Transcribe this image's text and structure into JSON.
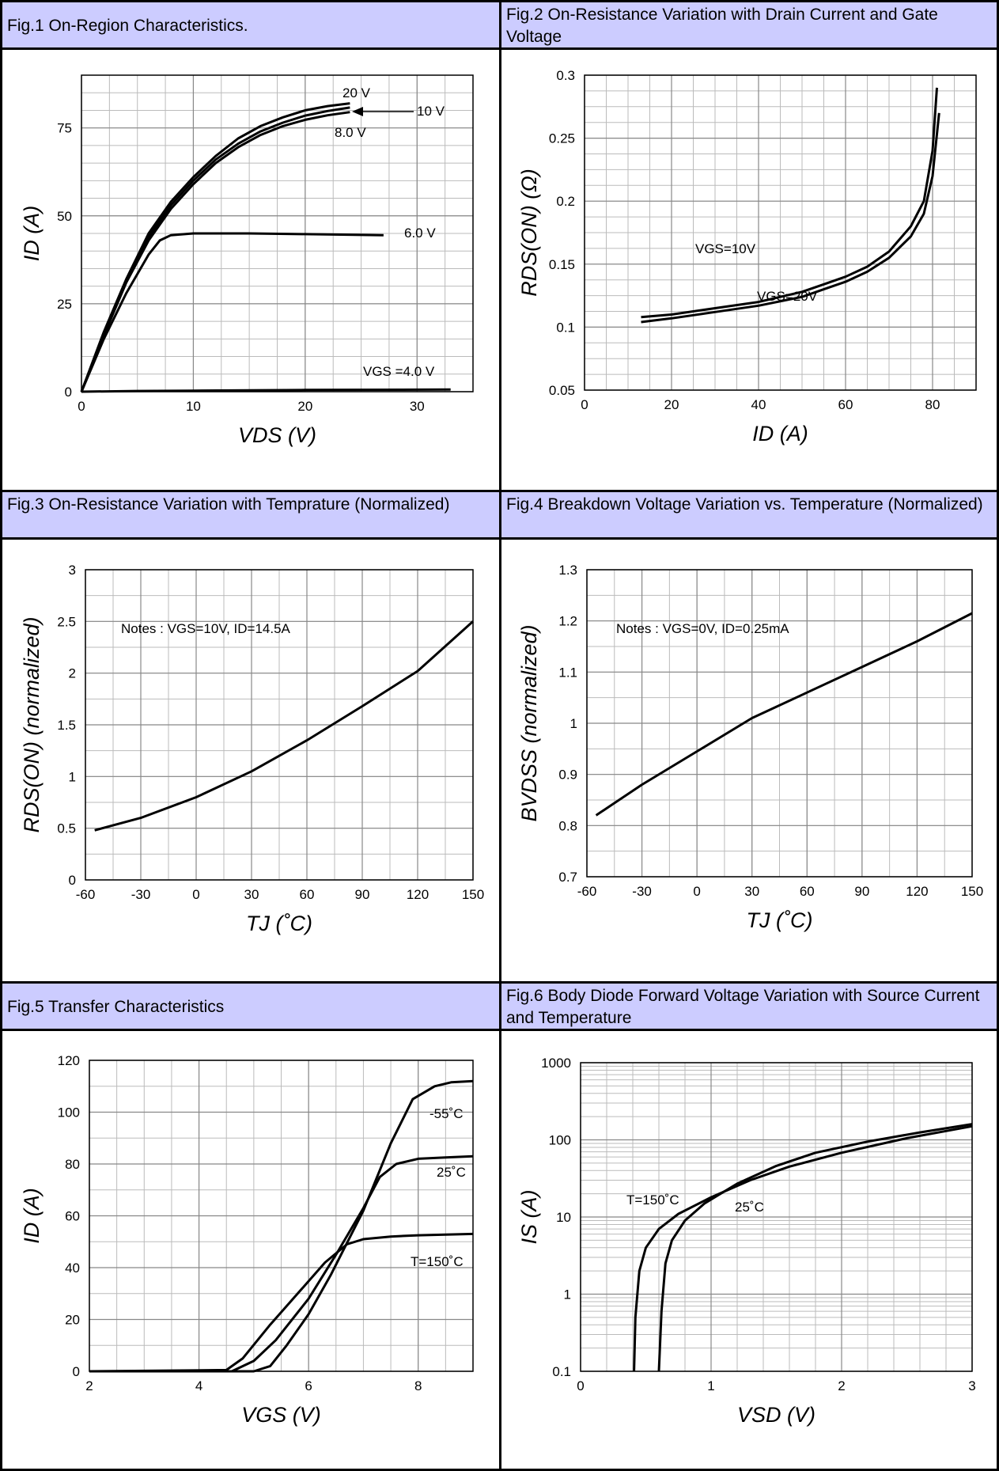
{
  "figures": [
    {
      "title": "Fig.1 On-Region Characteristics."
    },
    {
      "title": "Fig.2 On-Resistance Variation with Drain Current and Gate Voltage"
    },
    {
      "title": "Fig.3 On-Resistance Variation with Temprature (Normalized)"
    },
    {
      "title": "Fig.4 Breakdown Voltage Variation vs. Temperature (Normalized)"
    },
    {
      "title": "Fig.5 Transfer Characteristics"
    },
    {
      "title": "Fig.6 Body Diode Forward Voltage Variation with Source Current and Temperature"
    }
  ],
  "chart_data": [
    {
      "type": "line",
      "title": "Fig.1 On-Region Characteristics.",
      "xlabel": "VDS (V)",
      "ylabel": "ID (A)",
      "xlim": [
        0,
        35
      ],
      "ylim": [
        0,
        90
      ],
      "xticks": [
        0,
        10,
        20,
        30
      ],
      "yticks": [
        0,
        25,
        50,
        75
      ],
      "series": [
        {
          "name": "20 V",
          "x": [
            0,
            2,
            4,
            6,
            8,
            10,
            12,
            14,
            16,
            18,
            20,
            22,
            24
          ],
          "y": [
            0,
            17,
            32,
            45,
            54,
            61,
            67,
            72,
            75.5,
            78,
            80,
            81.2,
            82
          ]
        },
        {
          "name": "10 V",
          "x": [
            0,
            2,
            4,
            6,
            8,
            10,
            12,
            14,
            16,
            18,
            20,
            22,
            24
          ],
          "y": [
            0,
            16.5,
            31.5,
            44,
            53,
            60,
            66,
            70.5,
            74,
            76.5,
            78.5,
            79.8,
            80.8
          ]
        },
        {
          "name": "8.0 V",
          "x": [
            0,
            2,
            4,
            6,
            8,
            10,
            12,
            14,
            16,
            18,
            20,
            22,
            24
          ],
          "y": [
            0,
            16,
            31,
            43,
            52,
            59,
            65,
            69.5,
            73,
            75.5,
            77.3,
            78.6,
            79.5
          ]
        },
        {
          "name": "6.0 V",
          "x": [
            0,
            2,
            4,
            6,
            7,
            8,
            10,
            15,
            20,
            27
          ],
          "y": [
            0,
            15,
            28,
            39,
            43,
            44.5,
            45,
            45,
            44.8,
            44.5
          ]
        },
        {
          "name": "VGS =4.0 V",
          "x": [
            0,
            5,
            10,
            20,
            33
          ],
          "y": [
            0,
            0.2,
            0.3,
            0.5,
            0.6
          ]
        }
      ],
      "annotations": [
        "20 V",
        "10 V",
        "8.0 V",
        "6.0 V",
        "VGS =4.0 V"
      ]
    },
    {
      "type": "line",
      "title": "Fig.2 On-Resistance Variation with Drain Current and Gate Voltage",
      "xlabel": "ID (A)",
      "ylabel": "RDS(ON) (Ω)",
      "xlim": [
        0,
        90
      ],
      "ylim": [
        0.05,
        0.3
      ],
      "xticks": [
        0,
        20,
        40,
        60,
        80
      ],
      "yticks": [
        0.05,
        0.1,
        0.15,
        0.2,
        0.25,
        0.3
      ],
      "series": [
        {
          "name": "VGS=10V",
          "x": [
            13,
            20,
            30,
            40,
            50,
            55,
            60,
            65,
            70,
            75,
            78,
            80,
            81
          ],
          "y": [
            0.108,
            0.11,
            0.115,
            0.12,
            0.128,
            0.134,
            0.14,
            0.148,
            0.16,
            0.18,
            0.2,
            0.24,
            0.29
          ]
        },
        {
          "name": "VGS=20V",
          "x": [
            13,
            20,
            30,
            40,
            50,
            55,
            60,
            65,
            70,
            75,
            78,
            80,
            81.5
          ],
          "y": [
            0.104,
            0.107,
            0.112,
            0.117,
            0.124,
            0.13,
            0.136,
            0.144,
            0.155,
            0.172,
            0.19,
            0.22,
            0.27
          ]
        }
      ],
      "annotations": [
        "VGS=10V",
        "VGS=20V"
      ]
    },
    {
      "type": "line",
      "title": "Fig.3 On-Resistance Variation with Temprature (Normalized)",
      "xlabel": "TJ (˚C)",
      "ylabel": "RDS(ON) (normalized)",
      "xlim": [
        -60,
        150
      ],
      "ylim": [
        0,
        3
      ],
      "xticks": [
        -60,
        -30,
        0,
        30,
        60,
        90,
        120,
        150
      ],
      "yticks": [
        0,
        0.5,
        1,
        1.5,
        2,
        2.5,
        3
      ],
      "series": [
        {
          "name": "",
          "x": [
            -55,
            -30,
            0,
            30,
            60,
            90,
            120,
            150
          ],
          "y": [
            0.48,
            0.6,
            0.8,
            1.05,
            1.35,
            1.68,
            2.02,
            2.5
          ]
        }
      ],
      "annotations": [
        "Notes : VGS=10V, ID=14.5A"
      ]
    },
    {
      "type": "line",
      "title": "Fig.4 Breakdown Voltage Variation vs. Temperature (Normalized)",
      "xlabel": "TJ (˚C)",
      "ylabel": "BVDSS (normalized)",
      "xlim": [
        -60,
        150
      ],
      "ylim": [
        0.7,
        1.3
      ],
      "xticks": [
        -60,
        -30,
        0,
        30,
        60,
        90,
        120,
        150
      ],
      "yticks": [
        0.7,
        0.8,
        0.9,
        1,
        1.1,
        1.2,
        1.3
      ],
      "series": [
        {
          "name": "",
          "x": [
            -55,
            -30,
            0,
            30,
            60,
            90,
            120,
            150
          ],
          "y": [
            0.82,
            0.88,
            0.945,
            1.01,
            1.06,
            1.11,
            1.16,
            1.215
          ]
        }
      ],
      "annotations": [
        "Notes : VGS=0V, ID=0.25mA"
      ]
    },
    {
      "type": "line",
      "title": "Fig.5 Transfer Characteristics",
      "xlabel": "VGS (V)",
      "ylabel": "ID (A)",
      "xlim": [
        2,
        9
      ],
      "ylim": [
        0,
        120
      ],
      "xticks": [
        2,
        4,
        6,
        8
      ],
      "yticks": [
        0,
        20,
        40,
        60,
        80,
        100,
        120
      ],
      "series": [
        {
          "name": "-55˚C",
          "x": [
            2,
            5,
            5.3,
            5.6,
            6,
            6.4,
            7,
            7.5,
            7.9,
            8.3,
            8.6,
            9
          ],
          "y": [
            0,
            0,
            2,
            10,
            22,
            37,
            62,
            88,
            105,
            110,
            111.5,
            112
          ]
        },
        {
          "name": "25˚C",
          "x": [
            2,
            4.6,
            5,
            5.4,
            6,
            6.5,
            7,
            7.3,
            7.6,
            8,
            8.5,
            9
          ],
          "y": [
            0,
            0,
            4,
            12,
            28,
            45,
            63,
            75,
            80,
            82,
            82.5,
            83
          ]
        },
        {
          "name": "T=150˚C",
          "x": [
            2,
            4.5,
            4.8,
            5.3,
            5.8,
            6.3,
            6.7,
            7,
            7.5,
            8,
            9
          ],
          "y": [
            0,
            0.5,
            5,
            18,
            30,
            42,
            49,
            51,
            52,
            52.5,
            53
          ]
        }
      ],
      "annotations": [
        "-55˚C",
        "25˚C",
        "T=150˚C"
      ]
    },
    {
      "type": "line",
      "title": "Fig.6 Body Diode Forward Voltage Variation with Source Current and Temperature",
      "xlabel": "VSD (V)",
      "ylabel": "IS (A)",
      "yscale": "log",
      "xlim": [
        0,
        3
      ],
      "ylim": [
        0.1,
        1000
      ],
      "xticks": [
        0,
        1,
        2,
        3
      ],
      "yticks": [
        0.1,
        1,
        10,
        100,
        1000
      ],
      "series": [
        {
          "name": "T=150˚C",
          "x": [
            0.41,
            0.42,
            0.45,
            0.5,
            0.6,
            0.75,
            1,
            1.3,
            1.6,
            2,
            2.5,
            3
          ],
          "y": [
            0.1,
            0.5,
            2,
            4,
            7,
            11,
            18,
            30,
            45,
            68,
            105,
            150
          ]
        },
        {
          "name": "25˚C",
          "x": [
            0.6,
            0.62,
            0.65,
            0.7,
            0.8,
            0.95,
            1.2,
            1.5,
            1.8,
            2.2,
            2.6,
            3
          ],
          "y": [
            0.1,
            0.6,
            2.5,
            5,
            9,
            15,
            27,
            46,
            68,
            95,
            125,
            160
          ]
        }
      ],
      "annotations": [
        "T=150˚C",
        "25˚C"
      ]
    }
  ]
}
